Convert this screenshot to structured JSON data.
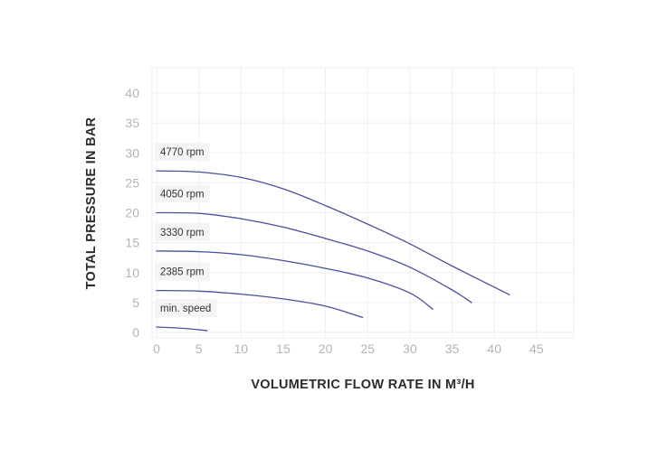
{
  "chart_data": {
    "type": "line",
    "xlabel": "VOLUMETRIC FLOW RATE IN M³/H",
    "ylabel": "TOTAL PRESSURE IN BAR",
    "xlim": [
      0,
      50
    ],
    "ylim": [
      0,
      40
    ],
    "xticks": [
      0,
      5,
      10,
      15,
      20,
      25,
      30,
      35,
      40,
      45
    ],
    "yticks": [
      0,
      5,
      10,
      15,
      20,
      25,
      30,
      35,
      40
    ],
    "grid": true,
    "legend": "inline labels",
    "line_color": "#4a4f9c",
    "series": [
      {
        "name": "4770 rpm",
        "x": [
          0,
          5,
          10,
          15,
          20,
          25,
          30,
          35,
          41.8
        ],
        "y": [
          27,
          26.8,
          25.9,
          24,
          21.2,
          18.1,
          14.8,
          11.1,
          6.3
        ]
      },
      {
        "name": "4050 rpm",
        "x": [
          0,
          5,
          10,
          15,
          20,
          25,
          30,
          35,
          37.3
        ],
        "y": [
          20,
          19.9,
          19,
          17.6,
          15.7,
          13.6,
          10.9,
          7.1,
          5
        ]
      },
      {
        "name": "3330 rpm",
        "x": [
          0,
          5,
          10,
          15,
          20,
          25,
          30,
          32.7
        ],
        "y": [
          13.6,
          13.5,
          13,
          12,
          10.7,
          9.1,
          6.6,
          3.9
        ]
      },
      {
        "name": "2385 rpm",
        "x": [
          0,
          5,
          10,
          15,
          20,
          24.4
        ],
        "y": [
          7,
          6.9,
          6.4,
          5.6,
          4.4,
          2.5
        ]
      },
      {
        "name": "min. speed",
        "x": [
          0,
          3,
          6
        ],
        "y": [
          0.9,
          0.7,
          0.3
        ]
      }
    ]
  }
}
